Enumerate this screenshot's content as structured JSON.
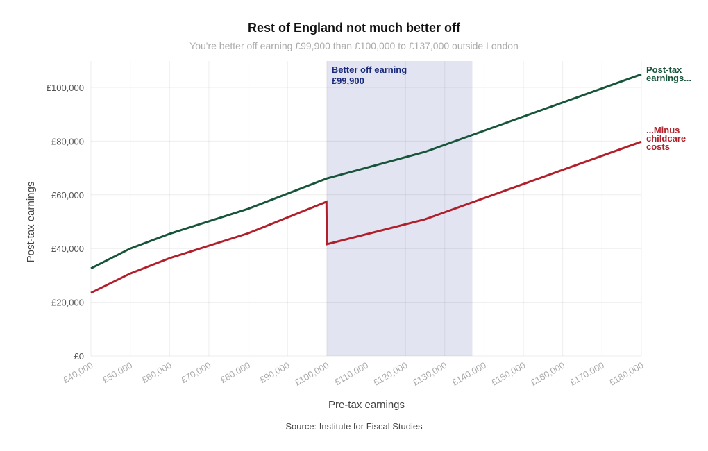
{
  "chart_data": {
    "type": "line",
    "title": "Rest of England not much better off",
    "subtitle": "You're better off earning £99,900 than £100,000 to £137,000 outside London",
    "xlabel": "Pre-tax earnings",
    "ylabel": "Post-tax earnings",
    "source": "Source: Institute for Fiscal Studies",
    "xlim": [
      40000,
      180000
    ],
    "ylim": [
      0,
      110000
    ],
    "grid": true,
    "x_ticks": [
      40000,
      50000,
      60000,
      70000,
      80000,
      90000,
      100000,
      110000,
      120000,
      130000,
      140000,
      150000,
      160000,
      170000,
      180000
    ],
    "x_tick_labels": [
      "£40,000",
      "£50,000",
      "£60,000",
      "£70,000",
      "£80,000",
      "£90,000",
      "£100,000",
      "£110,000",
      "£120,000",
      "£130,000",
      "£140,000",
      "£150,000",
      "£160,000",
      "£170,000",
      "£180,000"
    ],
    "y_ticks": [
      0,
      20000,
      40000,
      60000,
      80000,
      100000
    ],
    "y_tick_labels": [
      "£0",
      "£20,000",
      "£40,000",
      "£60,000",
      "£80,000",
      "£100,000"
    ],
    "shaded_region": {
      "x": [
        100000,
        137000
      ],
      "color": "#e3e4f2",
      "label_line1": "Better off earning",
      "label_line2": "£99,900",
      "label_color": "#1a2a7a"
    },
    "series": [
      {
        "name": "Post-tax earnings...",
        "label_lines": [
          "Post-tax",
          "earnings..."
        ],
        "color": "#17553a",
        "x": [
          40000,
          50000,
          60000,
          80000,
          100000,
          125000,
          180000
        ],
        "y": [
          32600,
          40000,
          45500,
          54800,
          66100,
          76000,
          104900
        ]
      },
      {
        "name": "...Minus childcare costs",
        "label_lines": [
          "...Minus",
          "childcare",
          "costs"
        ],
        "color": "#b01f2a",
        "x": [
          40000,
          50000,
          60000,
          80000,
          99900,
          100000,
          125000,
          180000
        ],
        "y": [
          23500,
          30700,
          36400,
          45700,
          57400,
          41600,
          50900,
          79800
        ]
      }
    ]
  }
}
